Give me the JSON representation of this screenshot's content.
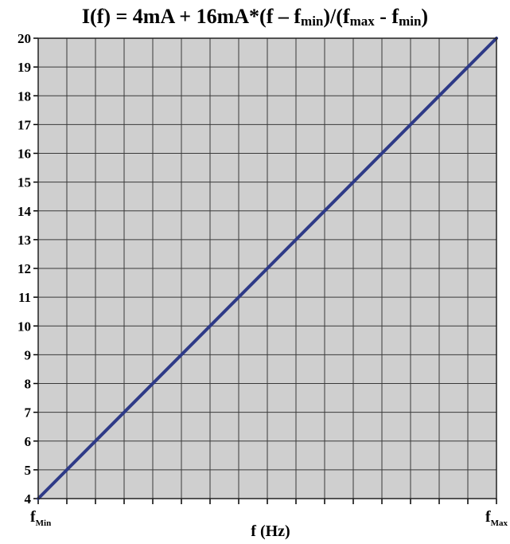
{
  "chart_data": {
    "type": "line",
    "title": {
      "a": "I(f) = 4mA + 16mA*(f – f",
      "a_sub": "min",
      "b": ")/(f",
      "b_sub": "max",
      "c": " - f",
      "c_sub": "min",
      "d": ")"
    },
    "xlabel": "f (Hz)",
    "ylabel": "",
    "x_tick_labels": [
      {
        "base": "f",
        "sub": "Min",
        "value": 0
      },
      {
        "base": "f",
        "sub": "Max",
        "value": 1
      }
    ],
    "xlim": [
      0,
      1
    ],
    "ylim": [
      4,
      20
    ],
    "y_ticks": [
      4,
      5,
      6,
      7,
      8,
      9,
      10,
      11,
      12,
      13,
      14,
      15,
      16,
      17,
      18,
      19,
      20
    ],
    "x_grid_divisions": 16,
    "grid": true,
    "series": [
      {
        "x": [
          0,
          1
        ],
        "y": [
          4,
          20
        ],
        "color": "#2e3a87"
      }
    ],
    "colors": {
      "plot_background": "#cfcfcf",
      "grid": "#3a3a3a",
      "line": "#2e3a87"
    }
  }
}
